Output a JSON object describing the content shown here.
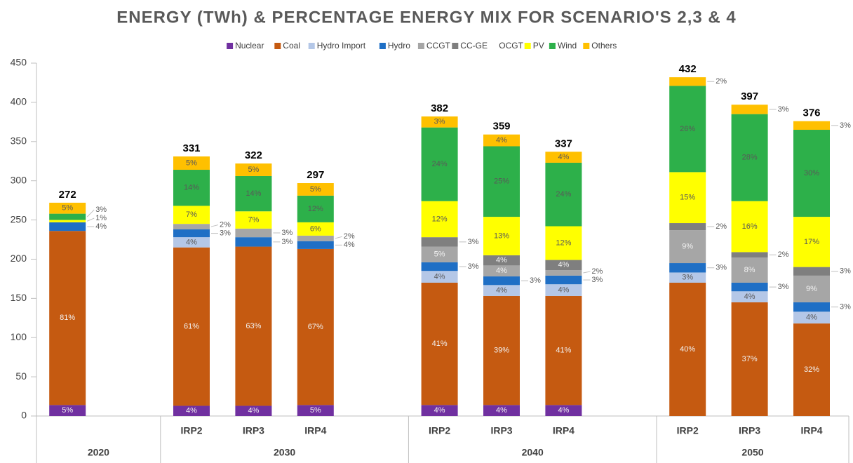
{
  "chart_data": {
    "type": "stacked-bar",
    "title": "ENERGY (TWh) & PERCENTAGE ENERGY MIX FOR SCENARIO'S 2,3 & 4",
    "categories": [
      null,
      "IRP2",
      "IRP3",
      "IRP4",
      "IRP2",
      "IRP3",
      "IRP4",
      "IRP2",
      "IRP3",
      "IRP4"
    ],
    "category_groups": [
      "2020",
      "2030",
      "2030",
      "2030",
      "2040",
      "2040",
      "2040",
      "2050",
      "2050",
      "2050"
    ],
    "ylim": [
      0,
      450
    ],
    "yticks": [
      0,
      50,
      100,
      150,
      200,
      250,
      300,
      350,
      400,
      450
    ],
    "totals": [
      272,
      331,
      322,
      297,
      382,
      359,
      337,
      432,
      397,
      376
    ],
    "series": [
      {
        "name": "Nuclear",
        "color": "#7030a0",
        "values": [
          14,
          13,
          13,
          14,
          14,
          14,
          14,
          null,
          null,
          null
        ],
        "labels": [
          "5%",
          "4%",
          "4%",
          "5%",
          "4%",
          "4%",
          "4%",
          null,
          null,
          null
        ]
      },
      {
        "name": "Coal",
        "color": "#c55a11",
        "values": [
          222,
          202,
          203,
          199,
          156,
          139,
          139,
          170,
          145,
          118
        ],
        "labels": [
          "81%",
          "61%",
          "63%",
          "67%",
          "41%",
          "39%",
          "41%",
          "40%",
          "37%",
          "32%"
        ]
      },
      {
        "name": "Hydro Import",
        "color": "#b4c7e7",
        "values": [
          null,
          13,
          null,
          null,
          15,
          14,
          15,
          13,
          14,
          15
        ],
        "labels": [
          null,
          "4%",
          null,
          null,
          "4%",
          "4%",
          "4%",
          "3%",
          "4%",
          "4%"
        ]
      },
      {
        "name": "Hydro",
        "color": "#1f6fc5",
        "values": [
          11,
          10,
          12,
          10,
          11,
          11,
          11,
          12,
          11,
          12
        ],
        "labels": [
          "4%",
          "3%",
          "3%",
          "4%",
          "3%",
          "3%",
          "3%",
          "3%",
          "3%",
          "3%"
        ]
      },
      {
        "name": "CCGT",
        "color": "#a6a6a6",
        "values": [
          null,
          7,
          11,
          7,
          20,
          14,
          7,
          42,
          32,
          34
        ],
        "labels": [
          null,
          "2%",
          "3%",
          "2%",
          "5%",
          "4%",
          "2%",
          "9%",
          "8%",
          "9%"
        ]
      },
      {
        "name": "CC-GE",
        "color": "#7f7f7f",
        "values": [
          null,
          null,
          null,
          null,
          12,
          13,
          13,
          9,
          7,
          11
        ],
        "labels": [
          null,
          null,
          null,
          null,
          "3%",
          "4%",
          "4%",
          "2%",
          "2%",
          "3%"
        ]
      },
      {
        "name": "OCGT",
        "color": "#ffffff",
        "values": [
          null,
          null,
          null,
          null,
          null,
          null,
          null,
          null,
          null,
          null
        ],
        "labels": [
          null,
          null,
          null,
          null,
          null,
          null,
          null,
          null,
          null,
          null
        ]
      },
      {
        "name": "PV",
        "color": "#ffff00",
        "values": [
          3,
          23,
          22,
          17,
          46,
          49,
          43,
          65,
          65,
          64
        ],
        "labels": [
          "1%",
          "7%",
          "7%",
          "6%",
          "12%",
          "13%",
          "12%",
          "15%",
          "16%",
          "17%"
        ]
      },
      {
        "name": "Wind",
        "color": "#2db04a",
        "values": [
          8,
          46,
          45,
          34,
          94,
          90,
          81,
          110,
          111,
          111
        ],
        "labels": [
          "3%",
          "14%",
          "14%",
          "12%",
          "24%",
          "25%",
          "24%",
          "26%",
          "28%",
          "30%"
        ]
      },
      {
        "name": "Others",
        "color": "#ffc000",
        "values": [
          14,
          17,
          16,
          16,
          14,
          15,
          14,
          11,
          12,
          11
        ],
        "labels": [
          "5%",
          "5%",
          "5%",
          "5%",
          "3%",
          "4%",
          "4%",
          "2%",
          "3%",
          "3%"
        ]
      }
    ],
    "legend": "top",
    "grid": false
  }
}
